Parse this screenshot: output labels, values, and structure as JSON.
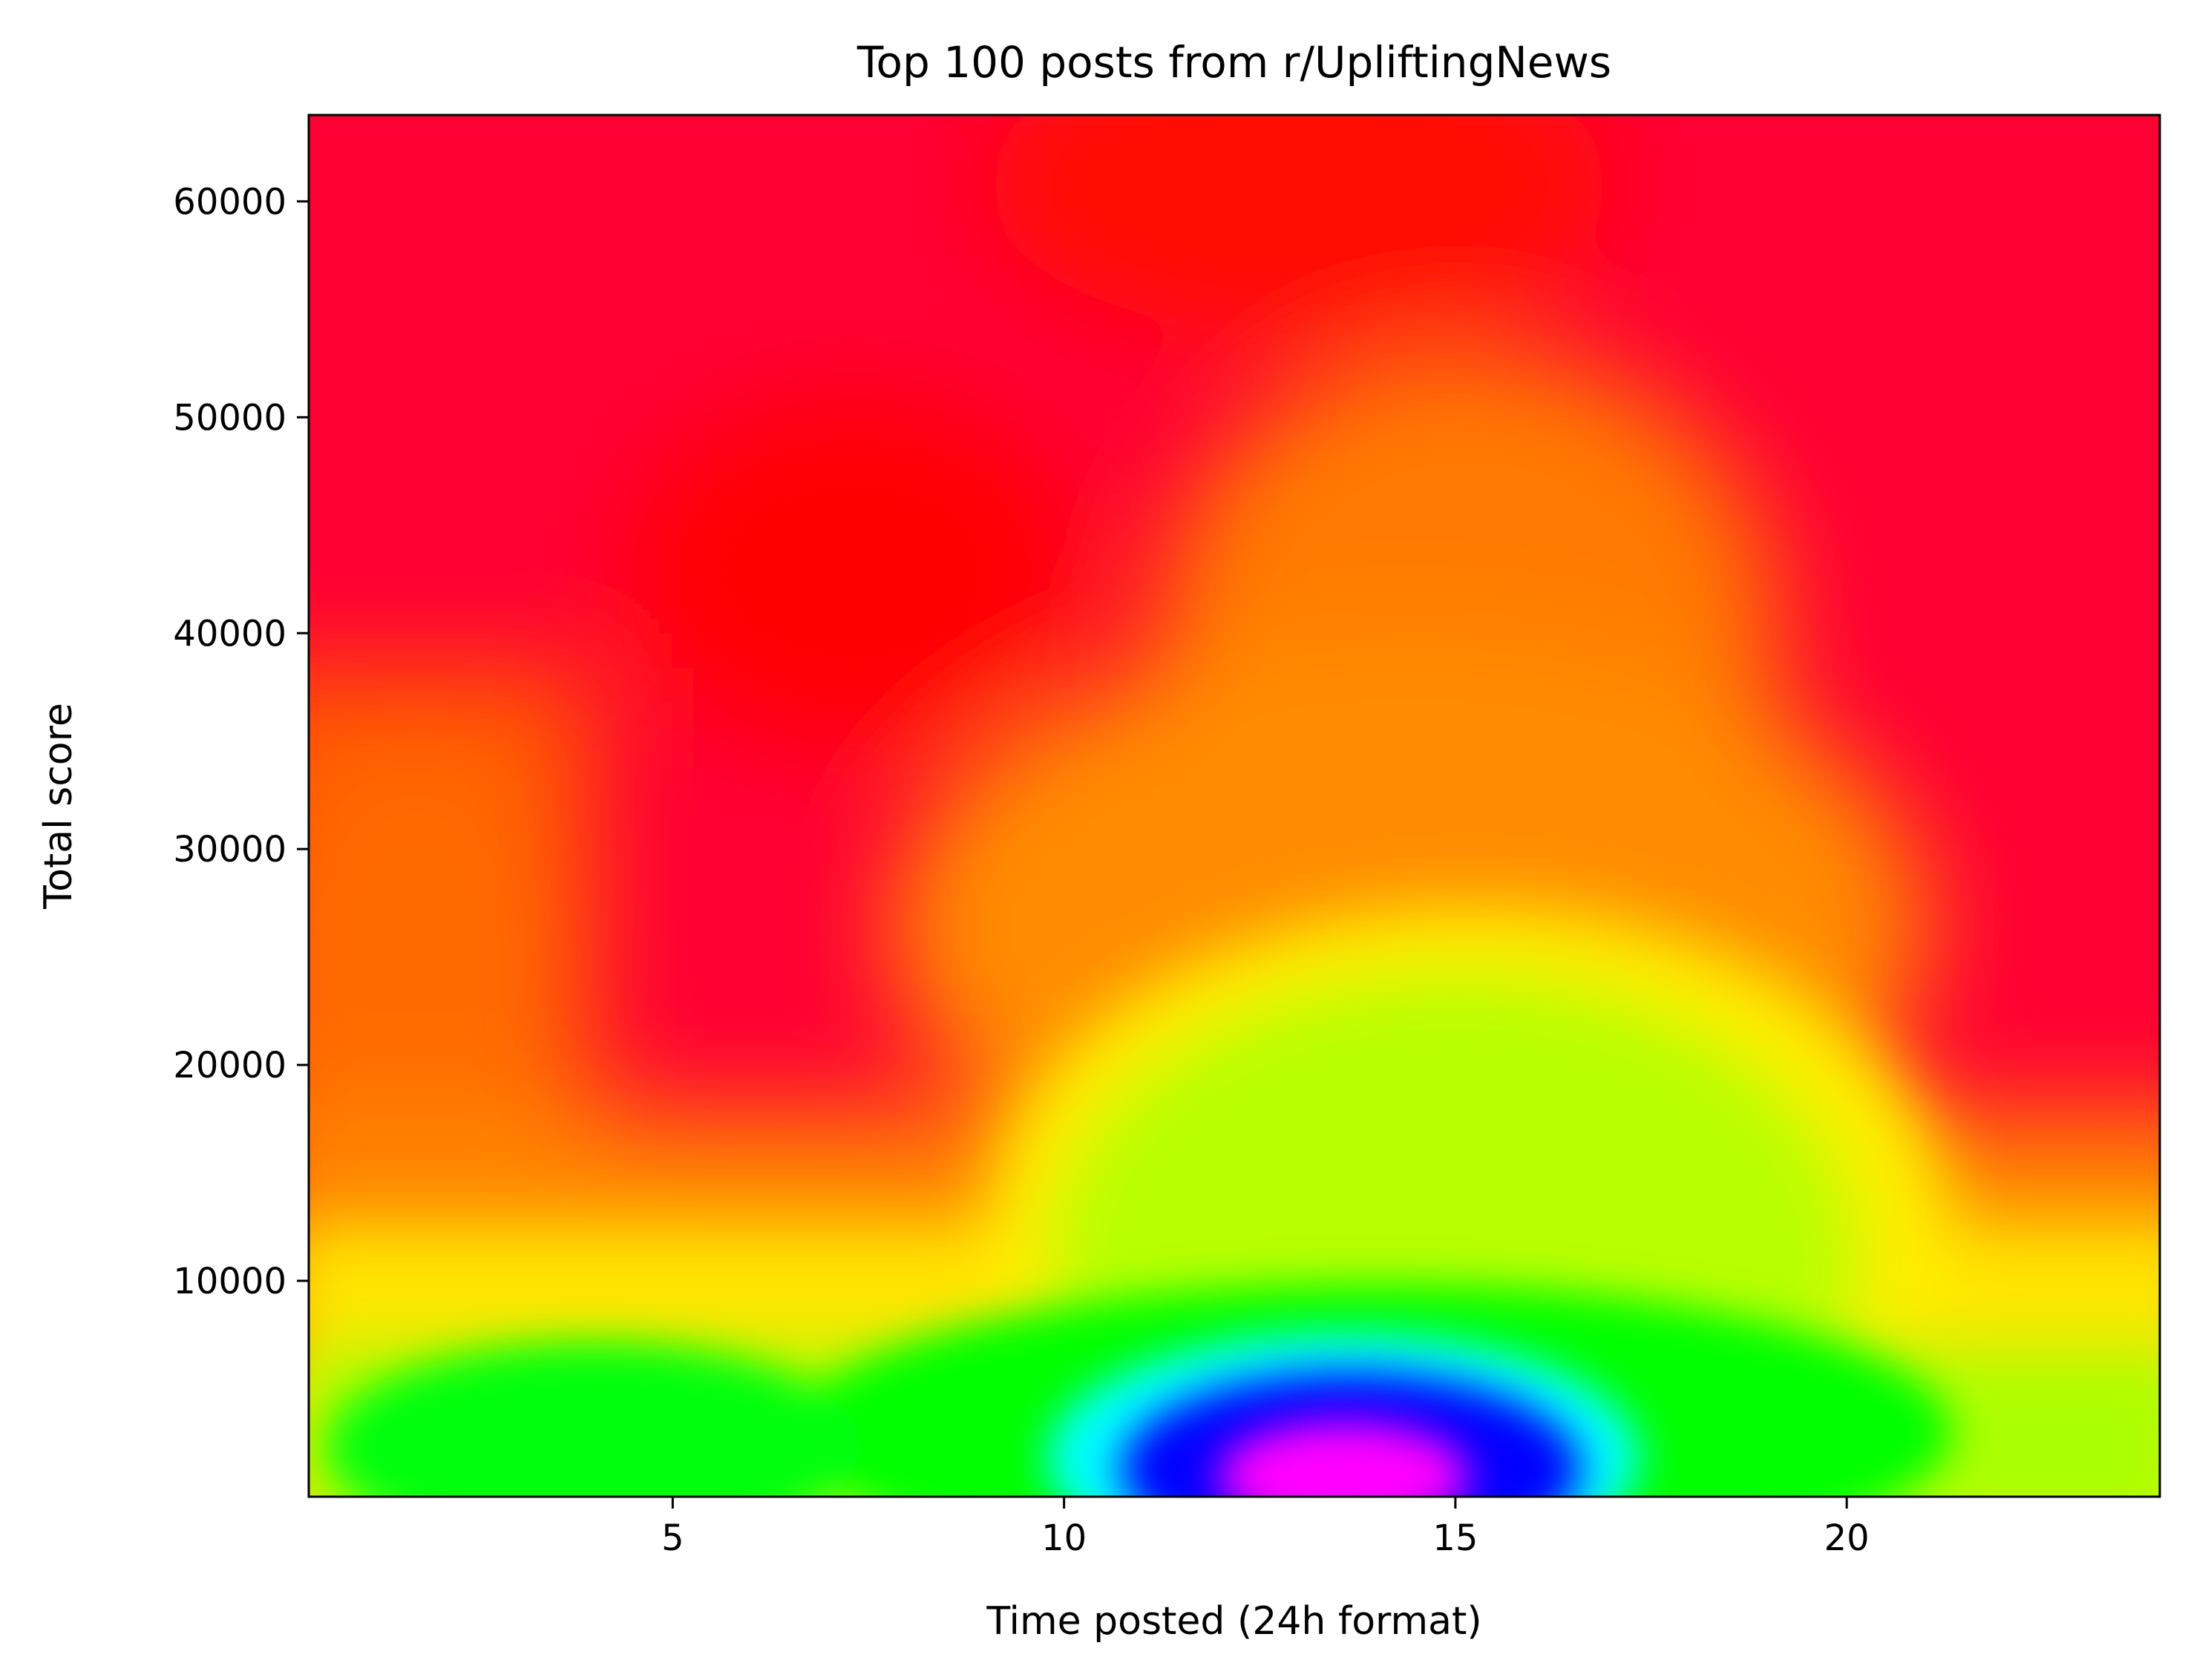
{
  "chart_data": {
    "type": "heatmap",
    "title": "Top 100 posts from r/UpliftingNews",
    "xlabel": "Time posted (24h format)",
    "ylabel": "Total score",
    "xlim": [
      0.35,
      24
    ],
    "ylim": [
      0,
      64000
    ],
    "x_ticks": [
      {
        "value": 5,
        "label": "5"
      },
      {
        "value": 10,
        "label": "10"
      },
      {
        "value": 15,
        "label": "15"
      },
      {
        "value": 20,
        "label": "20"
      }
    ],
    "y_ticks": [
      {
        "value": 10000,
        "label": "10000"
      },
      {
        "value": 20000,
        "label": "20000"
      },
      {
        "value": 30000,
        "label": "30000"
      },
      {
        "value": 40000,
        "label": "40000"
      },
      {
        "value": 50000,
        "label": "50000"
      },
      {
        "value": 60000,
        "label": "60000"
      }
    ],
    "colormap": "gist_rainbow (high density = magenta/blue, low density = red)",
    "density_peaks": [
      {
        "x": 13.8,
        "y": 1500,
        "level": "highest",
        "color": "#ff00ff"
      },
      {
        "x": 14.2,
        "y": 4000,
        "level": "very high",
        "color": "#0000ff"
      },
      {
        "x": 14.0,
        "y": 8500,
        "level": "high",
        "color": "#00ffff"
      },
      {
        "x": 5.0,
        "y": 3000,
        "level": "medium",
        "color": "#00ff00"
      },
      {
        "x": 15.0,
        "y": 20000,
        "level": "medium-low",
        "color": "#b4ff00"
      },
      {
        "x": 2.5,
        "y": 32000,
        "level": "low",
        "color": "#ff6a00"
      },
      {
        "x": 14.5,
        "y": 44000,
        "level": "low",
        "color": "#ff7a00"
      },
      {
        "x": 8.0,
        "y": 40000,
        "level": "lowest",
        "color": "#ff0000"
      },
      {
        "x": 22.0,
        "y": 55000,
        "level": "lowest",
        "color": "#ff0033"
      }
    ],
    "grid": false,
    "legend": "none"
  }
}
